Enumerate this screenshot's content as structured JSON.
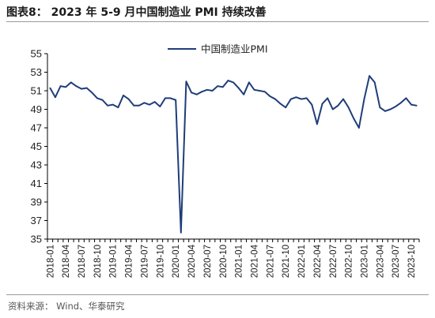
{
  "figure": {
    "title": "图表8：  2023 年 5-9 月中国制造业 PMI 持续改善",
    "source": "资料来源：  Wind、华泰研究"
  },
  "colors": {
    "line": "#1f3d7a",
    "axis": "#000000"
  },
  "chart_data": {
    "type": "line",
    "title": "",
    "xlabel": "",
    "ylabel": "",
    "ylim": [
      35,
      55
    ],
    "yticks": [
      35,
      37,
      39,
      41,
      43,
      45,
      47,
      49,
      51,
      53,
      55
    ],
    "legend": {
      "position": "top-center"
    },
    "grid": false,
    "x": [
      "2018-01",
      "2018-02",
      "2018-03",
      "2018-04",
      "2018-05",
      "2018-06",
      "2018-07",
      "2018-08",
      "2018-09",
      "2018-10",
      "2018-11",
      "2018-12",
      "2019-01",
      "2019-02",
      "2019-03",
      "2019-04",
      "2019-05",
      "2019-06",
      "2019-07",
      "2019-08",
      "2019-09",
      "2019-10",
      "2019-11",
      "2019-12",
      "2020-01",
      "2020-02",
      "2020-03",
      "2020-04",
      "2020-05",
      "2020-06",
      "2020-07",
      "2020-08",
      "2020-09",
      "2020-10",
      "2020-11",
      "2020-12",
      "2021-01",
      "2021-02",
      "2021-03",
      "2021-04",
      "2021-05",
      "2021-06",
      "2021-07",
      "2021-08",
      "2021-09",
      "2021-10",
      "2021-11",
      "2021-12",
      "2022-01",
      "2022-02",
      "2022-03",
      "2022-04",
      "2022-05",
      "2022-06",
      "2022-07",
      "2022-08",
      "2022-09",
      "2022-10",
      "2022-11",
      "2022-12",
      "2023-01",
      "2023-02",
      "2023-03",
      "2023-04",
      "2023-05",
      "2023-06",
      "2023-07",
      "2023-08",
      "2023-09",
      "2023-10",
      "2023-11"
    ],
    "xtick_labels": [
      "2018-01",
      "2018-04",
      "2018-07",
      "2018-10",
      "2019-01",
      "2019-04",
      "2019-07",
      "2019-10",
      "2020-01",
      "2020-04",
      "2020-07",
      "2020-10",
      "2021-01",
      "2021-04",
      "2021-07",
      "2021-10",
      "2022-01",
      "2022-04",
      "2022-07",
      "2022-10",
      "2023-01",
      "2023-04",
      "2023-07",
      "2023-10"
    ],
    "series": [
      {
        "name": "中国制造业PMI",
        "values": [
          51.3,
          50.3,
          51.5,
          51.4,
          51.9,
          51.5,
          51.2,
          51.3,
          50.8,
          50.2,
          50.0,
          49.4,
          49.5,
          49.2,
          50.5,
          50.1,
          49.4,
          49.4,
          49.7,
          49.5,
          49.8,
          49.3,
          50.2,
          50.2,
          50.0,
          35.7,
          52.0,
          50.8,
          50.6,
          50.9,
          51.1,
          51.0,
          51.5,
          51.4,
          52.1,
          51.9,
          51.3,
          50.6,
          51.9,
          51.1,
          51.0,
          50.9,
          50.4,
          50.1,
          49.6,
          49.2,
          50.1,
          50.3,
          50.1,
          50.2,
          49.5,
          47.4,
          49.6,
          50.2,
          49.0,
          49.4,
          50.1,
          49.2,
          48.0,
          47.0,
          50.1,
          52.6,
          51.9,
          49.2,
          48.8,
          49.0,
          49.3,
          49.7,
          50.2,
          49.5,
          49.4
        ]
      }
    ]
  }
}
